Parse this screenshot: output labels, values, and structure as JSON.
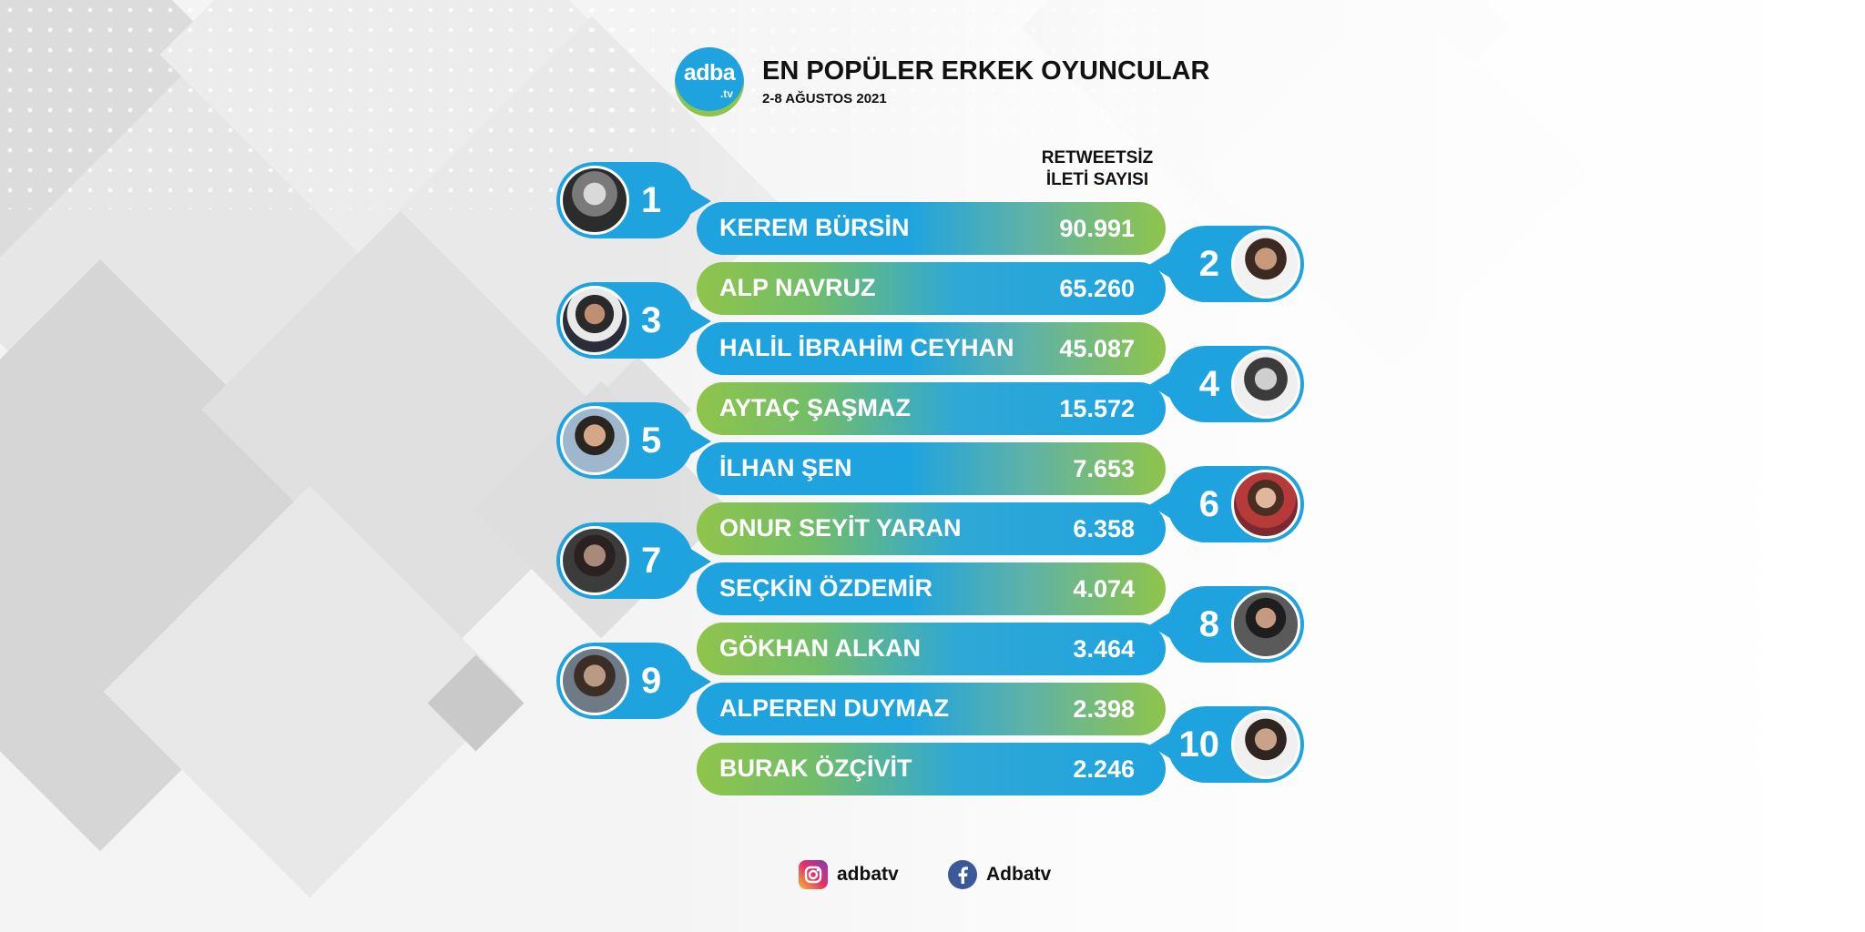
{
  "header": {
    "logo_text": "adba",
    "logo_sub": ".tv",
    "title": "EN POPÜLER ERKEK OYUNCULAR",
    "subtitle": "2-8 AĞUSTOS 2021"
  },
  "column_header": {
    "line1": "RETWEETSİZ",
    "line2": "İLETİ SAYISI"
  },
  "colors": {
    "blue": "#1ea3df",
    "green": "#8fc44a"
  },
  "ranking": [
    {
      "rank": "1",
      "name": "KEREM BÜRSİN",
      "value": "90.991"
    },
    {
      "rank": "2",
      "name": "ALP NAVRUZ",
      "value": "65.260"
    },
    {
      "rank": "3",
      "name": "HALİL İBRAHİM CEYHAN",
      "value": "45.087"
    },
    {
      "rank": "4",
      "name": "AYTAÇ ŞAŞMAZ",
      "value": "15.572"
    },
    {
      "rank": "5",
      "name": "İLHAN ŞEN",
      "value": "7.653"
    },
    {
      "rank": "6",
      "name": "ONUR SEYİT YARAN",
      "value": "6.358"
    },
    {
      "rank": "7",
      "name": "SEÇKİN ÖZDEMİR",
      "value": "4.074"
    },
    {
      "rank": "8",
      "name": "GÖKHAN ALKAN",
      "value": "3.464"
    },
    {
      "rank": "9",
      "name": "ALPEREN DUYMAZ",
      "value": "2.398"
    },
    {
      "rank": "10",
      "name": "BURAK ÖZÇİVİT",
      "value": "2.246"
    }
  ],
  "footer": {
    "instagram": "adbatv",
    "facebook": "Adbatv",
    "instagram_icon": "instagram-icon",
    "facebook_icon": "facebook-icon"
  }
}
